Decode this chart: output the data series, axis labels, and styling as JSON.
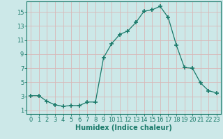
{
  "x": [
    0,
    1,
    2,
    3,
    4,
    5,
    6,
    7,
    8,
    9,
    10,
    11,
    12,
    13,
    14,
    15,
    16,
    17,
    18,
    19,
    20,
    21,
    22,
    23
  ],
  "y": [
    3.1,
    3.1,
    2.3,
    1.8,
    1.6,
    1.7,
    1.7,
    2.2,
    2.2,
    8.5,
    10.5,
    11.8,
    12.3,
    13.5,
    15.1,
    15.3,
    15.8,
    14.2,
    10.3,
    7.1,
    7.0,
    4.9,
    3.8,
    3.5
  ],
  "line_color": "#1a7a6a",
  "marker": "+",
  "marker_size": 4.0,
  "bg_color": "#cce8e8",
  "grid_color": "#d8b8b8",
  "xlabel": "Humidex (Indice chaleur)",
  "xlabel_fontsize": 7,
  "tick_fontsize": 6,
  "xlim": [
    -0.5,
    23.5
  ],
  "ylim": [
    0.5,
    16.5
  ],
  "yticks": [
    1,
    3,
    5,
    7,
    9,
    11,
    13,
    15
  ],
  "xticks": [
    0,
    1,
    2,
    3,
    4,
    5,
    6,
    7,
    8,
    9,
    10,
    11,
    12,
    13,
    14,
    15,
    16,
    17,
    18,
    19,
    20,
    21,
    22,
    23
  ]
}
